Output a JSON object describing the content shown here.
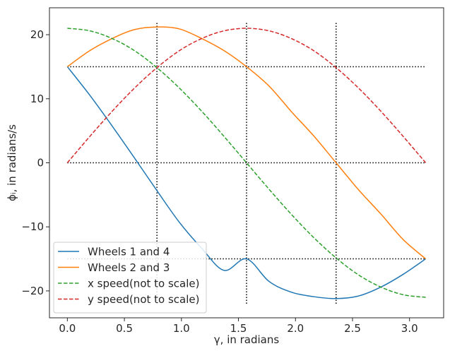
{
  "chart_data": {
    "type": "line",
    "xlabel": "γ, in radians",
    "ylabel": "ϕᵢ, in radians/s",
    "xlim": [
      -0.157,
      3.299
    ],
    "ylim": [
      -24.2,
      24.2
    ],
    "xticks": [
      0.0,
      0.5,
      1.0,
      1.5,
      2.0,
      2.5,
      3.0
    ],
    "xtick_labels": [
      "0.0",
      "0.5",
      "1.0",
      "1.5",
      "2.0",
      "2.5",
      "3.0"
    ],
    "yticks": [
      -20,
      -10,
      0,
      10,
      20
    ],
    "ytick_labels": [
      "−20",
      "−10",
      "0",
      "10",
      "20"
    ],
    "grid": false,
    "legend_position": "lower-left",
    "series": [
      {
        "name": "Wheels 1 and 4",
        "color": "#1f77b4",
        "style": "solid",
        "x": [
          0.0,
          0.1963,
          0.3927,
          0.589,
          0.7854,
          0.9817,
          1.1781,
          1.3744,
          1.5708,
          1.7671,
          1.9635,
          2.1598,
          2.3562,
          2.5525,
          2.7489,
          2.9452,
          3.1416
        ],
        "values": [
          15.0,
          10.56,
          5.74,
          0.74,
          -4.35,
          -9.28,
          -13.35,
          -16.8,
          -15.0,
          -18.5,
          -20.2,
          -20.9,
          -21.2,
          -20.8,
          -19.4,
          -17.4,
          -15.0
        ]
      },
      {
        "name": "Wheels 2 and 3",
        "color": "#ff7f0e",
        "style": "solid",
        "x": [
          0.0,
          0.1963,
          0.3927,
          0.589,
          0.7854,
          0.9817,
          1.1781,
          1.3744,
          1.5708,
          1.7671,
          1.9635,
          2.1598,
          2.3562,
          2.5525,
          2.7489,
          2.9452,
          3.1416
        ],
        "values": [
          15.0,
          17.5,
          19.4,
          20.8,
          21.2,
          20.9,
          19.4,
          17.5,
          15.0,
          12.0,
          8.0,
          4.2,
          0.0,
          -4.2,
          -8.0,
          -12.0,
          -15.0
        ]
      },
      {
        "name": "x speed(not to scale)",
        "color": "#2ca02c",
        "style": "dashed",
        "x": [
          0.0,
          0.1963,
          0.3927,
          0.589,
          0.7854,
          0.9817,
          1.1781,
          1.3744,
          1.5708,
          1.7671,
          1.9635,
          2.1598,
          2.3562,
          2.5525,
          2.7489,
          2.9452,
          3.1416
        ],
        "values": [
          21.0,
          20.6,
          19.4,
          17.5,
          14.85,
          11.67,
          8.04,
          4.1,
          0.0,
          -4.1,
          -8.04,
          -11.67,
          -14.85,
          -17.5,
          -19.4,
          -20.6,
          -21.0
        ]
      },
      {
        "name": "y speed(not to scale)",
        "color": "#d62728",
        "style": "dashed",
        "x": [
          0.0,
          0.1963,
          0.3927,
          0.589,
          0.7854,
          0.9817,
          1.1781,
          1.3744,
          1.5708,
          1.7671,
          1.9635,
          2.1598,
          2.3562,
          2.5525,
          2.7489,
          2.9452,
          3.1416
        ],
        "values": [
          0.0,
          4.1,
          8.04,
          11.67,
          14.85,
          17.5,
          19.4,
          20.6,
          21.0,
          20.6,
          19.4,
          17.5,
          14.85,
          11.67,
          8.04,
          4.1,
          0.0
        ]
      }
    ],
    "reference_lines": {
      "color": "#000000",
      "style": "dotted",
      "vertical": [
        {
          "x": 0.7854,
          "y_range": [
            -22,
            22
          ]
        },
        {
          "x": 1.5708,
          "y_range": [
            -22,
            22
          ]
        },
        {
          "x": 2.3562,
          "y_range": [
            -22,
            22
          ]
        }
      ],
      "horizontal": [
        {
          "y": 15,
          "x_range": [
            0.0,
            3.1416
          ]
        },
        {
          "y": 0,
          "x_range": [
            0.0,
            3.1416
          ]
        },
        {
          "y": -15,
          "x_range": [
            0.0,
            3.1416
          ]
        }
      ]
    }
  }
}
